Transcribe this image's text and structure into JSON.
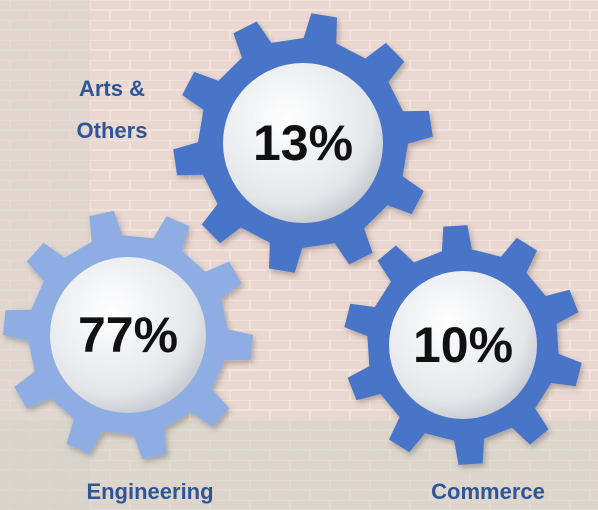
{
  "items": [
    {
      "label": "Arts & Others",
      "percent": "13%"
    },
    {
      "label": "Engineering",
      "percent": "77%"
    },
    {
      "label": "Commerce",
      "percent": "10%"
    }
  ]
}
